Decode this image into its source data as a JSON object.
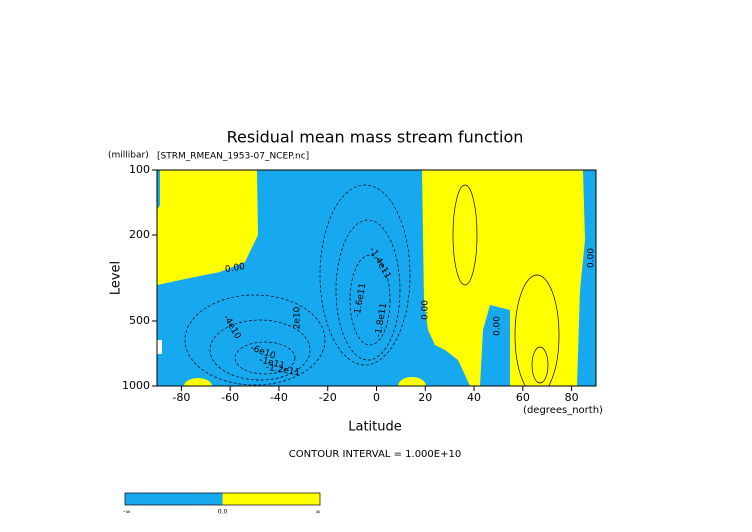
{
  "chart_data": {
    "type": "contour",
    "title": "Residual mean mass stream function",
    "subtitle": "[STRM_RMEAN_1953-07_NCEP.nc]",
    "y_unit": "(millibar)",
    "x_unit": "(degrees_north)",
    "xlabel": "Latitude",
    "ylabel": "Level",
    "note": "CONTOUR INTERVAL = 1.000E+10",
    "xlim": [
      -90,
      90
    ],
    "xticks": [
      -80,
      -60,
      -40,
      -20,
      0,
      20,
      40,
      60,
      80
    ],
    "ylim": [
      1000,
      100
    ],
    "yticks": [
      100,
      200,
      500,
      1000
    ],
    "ylog": true,
    "colors": {
      "negative": "#17a9f0",
      "positive": "#ffff00"
    },
    "contour_labels": [
      {
        "value": 0,
        "label": "0.00"
      },
      {
        "value": 0,
        "label": "0.00"
      },
      {
        "value": 0,
        "label": "0.00"
      },
      {
        "value": 0,
        "label": "0.00"
      },
      {
        "value": 20000000000,
        "label": "2e10"
      },
      {
        "value": -40000000000,
        "label": "-4e10"
      },
      {
        "value": -60000000000,
        "label": "-6e10"
      },
      {
        "value": -100000000000,
        "label": "-1e11"
      },
      {
        "value": -120000000000,
        "label": "-1.2e11"
      },
      {
        "value": -140000000000,
        "label": "-1.4e11"
      },
      {
        "value": -160000000000,
        "label": "-1.6e11"
      },
      {
        "value": -180000000000,
        "label": "-1.8e11"
      }
    ],
    "colorbar": {
      "labels": [
        "-∞",
        "0.0",
        "∞"
      ]
    }
  }
}
